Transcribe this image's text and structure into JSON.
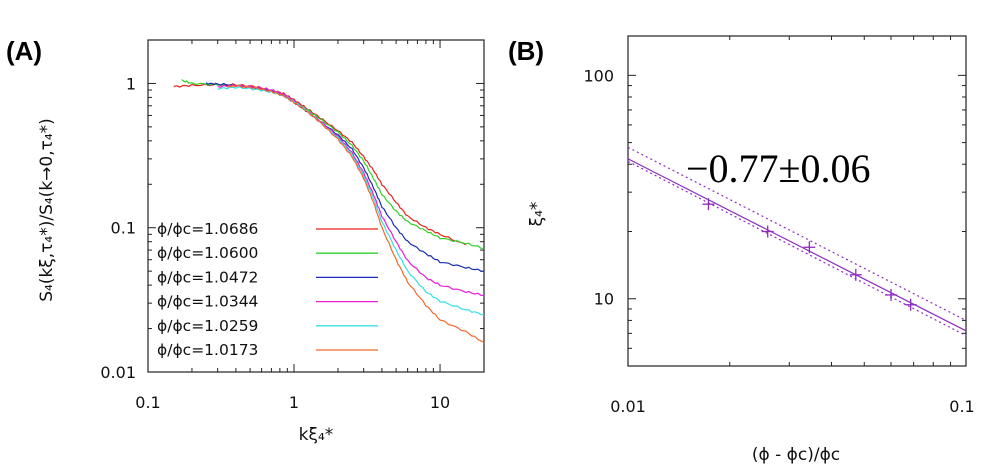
{
  "chart_data": [
    {
      "type": "line",
      "panel_label": "(A)",
      "xlabel": "kξ₄*",
      "ylabel": "S₄(kξ,τ₄*)/S₄(k→0,τ₄*)",
      "xscale": "log",
      "yscale": "log",
      "xlim": [
        0.1,
        20
      ],
      "ylim": [
        0.01,
        2
      ],
      "x_ticks": [
        0.1,
        1,
        10
      ],
      "x_tick_labels": [
        "0.1",
        "1",
        "10"
      ],
      "y_ticks": [
        0.01,
        0.1,
        1
      ],
      "y_tick_labels": [
        "0.01",
        "0.1",
        "1"
      ],
      "legend_position": "bottom-left",
      "series": [
        {
          "name": "ϕ/ϕc=1.0686",
          "color": "#e8221e",
          "x": [
            0.15,
            0.2,
            0.3,
            0.4,
            0.55,
            0.7,
            0.85,
            1.0,
            1.2,
            1.5,
            2.0,
            2.5,
            3.0,
            3.5,
            4.0,
            5.0,
            6.0,
            8.0,
            10.0,
            15.0
          ],
          "y": [
            0.95,
            0.97,
            0.98,
            0.98,
            0.95,
            0.9,
            0.85,
            0.77,
            0.68,
            0.58,
            0.47,
            0.39,
            0.31,
            0.25,
            0.2,
            0.15,
            0.12,
            0.1,
            0.09,
            0.076
          ]
        },
        {
          "name": "ϕ/ϕc=1.0600",
          "color": "#2fd12a",
          "x": [
            0.17,
            0.2,
            0.3,
            0.4,
            0.55,
            0.7,
            0.85,
            1.0,
            1.2,
            1.5,
            2.0,
            2.5,
            3.0,
            3.5,
            4.0,
            5.0,
            6.0,
            8.0,
            10.0,
            15.0,
            20.0
          ],
          "y": [
            1.05,
            1.0,
            0.98,
            0.97,
            0.94,
            0.89,
            0.83,
            0.75,
            0.67,
            0.57,
            0.46,
            0.37,
            0.29,
            0.22,
            0.17,
            0.13,
            0.11,
            0.095,
            0.085,
            0.078,
            0.072
          ]
        },
        {
          "name": "ϕ/ϕc=1.0472",
          "color": "#1b2db3",
          "x": [
            0.25,
            0.3,
            0.4,
            0.55,
            0.7,
            0.85,
            1.0,
            1.2,
            1.5,
            2.0,
            2.5,
            3.0,
            3.5,
            4.0,
            5.0,
            6.0,
            8.0,
            10.0,
            15.0,
            20.0
          ],
          "y": [
            1.0,
            0.99,
            0.97,
            0.93,
            0.88,
            0.82,
            0.74,
            0.65,
            0.55,
            0.44,
            0.35,
            0.26,
            0.19,
            0.14,
            0.1,
            0.08,
            0.066,
            0.058,
            0.053,
            0.05
          ]
        },
        {
          "name": "ϕ/ϕc=1.0344",
          "color": "#e81ed9",
          "x": [
            0.3,
            0.4,
            0.55,
            0.7,
            0.85,
            1.0,
            1.2,
            1.5,
            2.0,
            2.5,
            3.0,
            3.5,
            4.0,
            5.0,
            6.0,
            8.0,
            10.0,
            15.0,
            20.0
          ],
          "y": [
            0.95,
            0.97,
            0.94,
            0.9,
            0.84,
            0.76,
            0.66,
            0.55,
            0.43,
            0.33,
            0.24,
            0.17,
            0.12,
            0.08,
            0.059,
            0.045,
            0.04,
            0.036,
            0.034
          ]
        },
        {
          "name": "ϕ/ϕc=1.0259",
          "color": "#36e0e3",
          "x": [
            0.3,
            0.4,
            0.55,
            0.7,
            0.85,
            1.0,
            1.2,
            1.5,
            2.0,
            2.5,
            3.0,
            3.5,
            4.0,
            5.0,
            6.0,
            8.0,
            10.0,
            15.0,
            20.0
          ],
          "y": [
            0.92,
            0.94,
            0.91,
            0.87,
            0.82,
            0.75,
            0.66,
            0.54,
            0.42,
            0.32,
            0.23,
            0.16,
            0.11,
            0.07,
            0.05,
            0.036,
            0.031,
            0.027,
            0.025
          ]
        },
        {
          "name": "ϕ/ϕc=1.0173",
          "color": "#f2692a",
          "x": [
            0.35,
            0.4,
            0.55,
            0.7,
            0.85,
            1.0,
            1.2,
            1.5,
            2.0,
            2.5,
            3.0,
            3.5,
            4.0,
            5.0,
            6.0,
            8.0,
            10.0,
            15.0,
            20.0
          ],
          "y": [
            0.95,
            0.96,
            0.93,
            0.88,
            0.82,
            0.74,
            0.65,
            0.54,
            0.41,
            0.31,
            0.22,
            0.15,
            0.1,
            0.06,
            0.042,
            0.029,
            0.023,
            0.019,
            0.016
          ]
        }
      ]
    },
    {
      "type": "scatter",
      "panel_label": "(B)",
      "xlabel": "(ϕ - ϕc)/ϕc",
      "ylabel": "ξ₄*",
      "xscale": "log",
      "yscale": "log",
      "xlim": [
        0.01,
        0.1
      ],
      "ylim": [
        5,
        150
      ],
      "x_ticks": [
        0.01,
        0.1
      ],
      "x_tick_labels": [
        "0.01",
        "0.1"
      ],
      "y_ticks": [
        10,
        100
      ],
      "y_tick_labels": [
        "10",
        "100"
      ],
      "annotation": "−0.77±0.06",
      "color": "#8e2bbf",
      "points": {
        "x": [
          0.0173,
          0.0259,
          0.0344,
          0.0472,
          0.06,
          0.0686
        ],
        "y": [
          26.5,
          20.0,
          17.0,
          12.8,
          10.4,
          9.4
        ]
      },
      "fit": {
        "exponent": -0.77,
        "error": 0.06,
        "amplitude": 1.22
      }
    }
  ]
}
